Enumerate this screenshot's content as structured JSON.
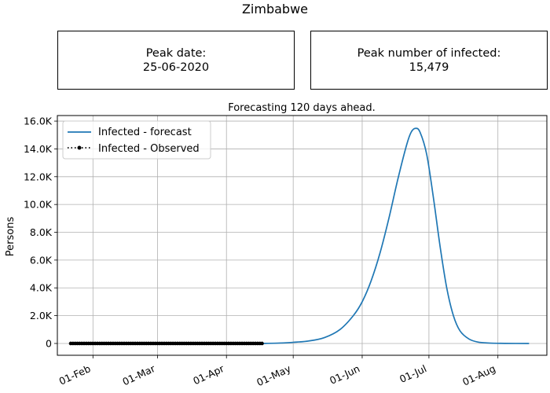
{
  "header": {
    "country": "Zimbabwe"
  },
  "stats": {
    "peak_date_label": "Peak date:",
    "peak_date_value": "25-06-2020",
    "peak_infected_label": "Peak number of infected:",
    "peak_infected_value": "15,479"
  },
  "chart_data": {
    "type": "line",
    "title": "Forecasting 120 days ahead.",
    "xlabel": "",
    "ylabel": "Persons",
    "x_axis": "date",
    "xlim": [
      "2020-01-16",
      "2020-08-23"
    ],
    "ylim": [
      -850,
      16400
    ],
    "x_ticks": [
      "2020-02-01",
      "2020-03-01",
      "2020-04-01",
      "2020-05-01",
      "2020-06-01",
      "2020-07-01",
      "2020-08-01"
    ],
    "x_tick_labels": [
      "01-Feb",
      "01-Mar",
      "01-Apr",
      "01-May",
      "01-Jun",
      "01-Jul",
      "01-Aug"
    ],
    "y_ticks": [
      0,
      2000,
      4000,
      6000,
      8000,
      10000,
      12000,
      14000,
      16000
    ],
    "y_tick_labels": [
      "0",
      "2.0K",
      "4.0K",
      "6.0K",
      "8.0K",
      "10.0K",
      "12.0K",
      "14.0K",
      "16.0K"
    ],
    "grid": true,
    "legend_position": "top-left",
    "series": [
      {
        "name": "Infected - forecast",
        "style": "solid",
        "color": "#1f77b4",
        "points": [
          [
            "2020-04-17",
            0
          ],
          [
            "2020-04-25",
            30
          ],
          [
            "2020-05-01",
            80
          ],
          [
            "2020-05-08",
            180
          ],
          [
            "2020-05-15",
            420
          ],
          [
            "2020-05-22",
            1000
          ],
          [
            "2020-05-28",
            2000
          ],
          [
            "2020-06-01",
            3000
          ],
          [
            "2020-06-05",
            4500
          ],
          [
            "2020-06-09",
            6500
          ],
          [
            "2020-06-13",
            9000
          ],
          [
            "2020-06-17",
            11800
          ],
          [
            "2020-06-21",
            14300
          ],
          [
            "2020-06-23",
            15200
          ],
          [
            "2020-06-25",
            15479
          ],
          [
            "2020-06-27",
            15200
          ],
          [
            "2020-06-30",
            13600
          ],
          [
            "2020-07-03",
            10500
          ],
          [
            "2020-07-06",
            7000
          ],
          [
            "2020-07-09",
            4000
          ],
          [
            "2020-07-12",
            2000
          ],
          [
            "2020-07-15",
            900
          ],
          [
            "2020-07-19",
            320
          ],
          [
            "2020-07-23",
            100
          ],
          [
            "2020-07-28",
            30
          ],
          [
            "2020-08-04",
            5
          ],
          [
            "2020-08-15",
            0
          ]
        ]
      },
      {
        "name": "Infected - Observed",
        "style": "dotted-markers",
        "color": "#000000",
        "start": "2020-01-22",
        "end": "2020-04-17",
        "value": 0
      }
    ]
  }
}
